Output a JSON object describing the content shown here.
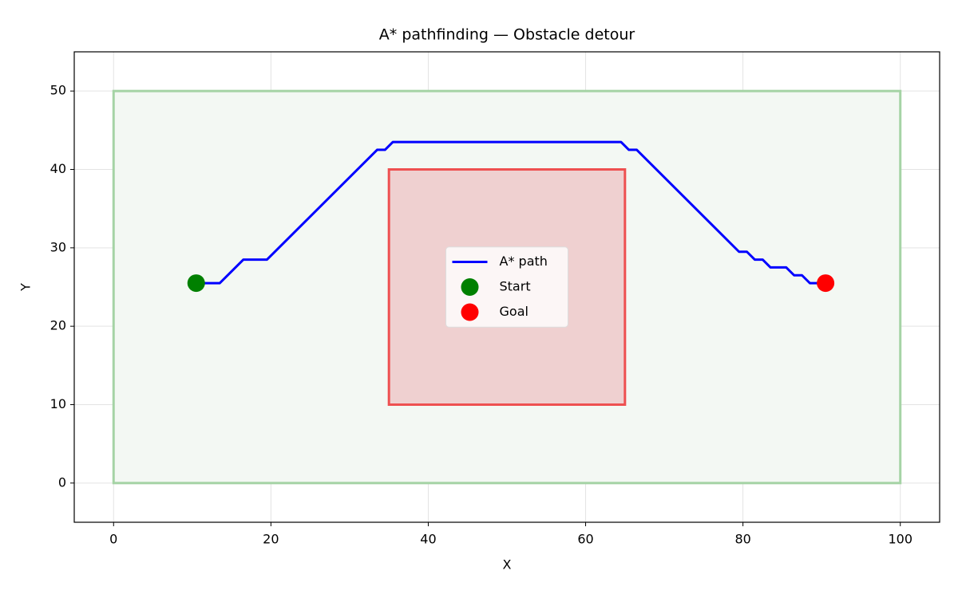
{
  "chart_data": {
    "type": "line",
    "title": "A* pathfinding — Obstacle detour",
    "xlabel": "X",
    "ylabel": "Y",
    "xlim": [
      -5,
      105
    ],
    "ylim": [
      -5,
      55
    ],
    "xticks": [
      0,
      20,
      40,
      60,
      80,
      100
    ],
    "yticks": [
      0,
      10,
      20,
      30,
      40,
      50
    ],
    "grid": true,
    "legend": "center",
    "regions": [
      {
        "xlim": [
          0,
          100
        ],
        "ylim": [
          0,
          50
        ],
        "color": "green"
      },
      {
        "xlim": [
          35,
          65
        ],
        "ylim": [
          10,
          40
        ],
        "color": "red"
      }
    ],
    "series": [
      {
        "name": "A* path",
        "type": "line",
        "color": "blue",
        "x": [
          10.5,
          13.5,
          16.5,
          19.5,
          33.5,
          34.5,
          35.5,
          64.5,
          65.5,
          66.5,
          79.5,
          80.5,
          81.5,
          82.5,
          83.5,
          85.5,
          86.5,
          87.5,
          88.5,
          90.5
        ],
        "values": [
          25.5,
          25.5,
          28.5,
          28.5,
          42.5,
          42.5,
          43.5,
          43.5,
          42.5,
          42.5,
          29.5,
          29.5,
          28.5,
          28.5,
          27.5,
          27.5,
          26.5,
          26.5,
          25.5,
          25.5
        ]
      },
      {
        "name": "Start",
        "type": "scatter",
        "color": "green",
        "x": [
          10.5
        ],
        "values": [
          25.5
        ]
      },
      {
        "name": "Goal",
        "type": "scatter",
        "color": "red",
        "x": [
          90.5
        ],
        "values": [
          25.5
        ]
      }
    ]
  }
}
